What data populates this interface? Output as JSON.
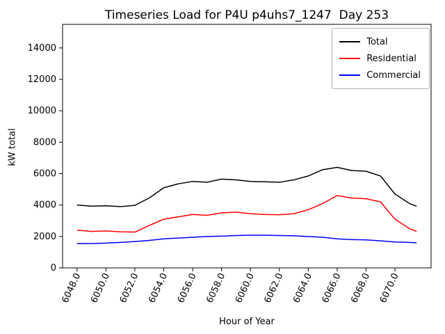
{
  "chart_data": {
    "type": "line",
    "title": "Timeseries Load for P4U p4uhs7_1247  Day 253",
    "xlabel": "Hour of Year",
    "ylabel": "kW total",
    "xlim": [
      6047,
      6072.5
    ],
    "ylim": [
      0,
      15500
    ],
    "xticks": [
      6048,
      6050,
      6052,
      6054,
      6056,
      6058,
      6060,
      6062,
      6064,
      6066,
      6068,
      6070
    ],
    "xtick_labels": [
      "6048.0",
      "6050.0",
      "6052.0",
      "6054.0",
      "6056.0",
      "6058.0",
      "6060.0",
      "6062.0",
      "6064.0",
      "6066.0",
      "6068.0",
      "6070.0"
    ],
    "yticks": [
      0,
      2000,
      4000,
      6000,
      8000,
      10000,
      12000,
      14000
    ],
    "grid": false,
    "legend_position": "upper right",
    "x": [
      6048,
      6049,
      6050,
      6051,
      6052,
      6053,
      6054,
      6055,
      6056,
      6057,
      6058,
      6059,
      6060,
      6061,
      6062,
      6063,
      6064,
      6065,
      6066,
      6067,
      6068,
      6069,
      6070,
      6071,
      6071.5
    ],
    "series": [
      {
        "name": "Total",
        "color": "#000000",
        "values": [
          4000,
          3930,
          3950,
          3900,
          3980,
          4450,
          5100,
          5350,
          5500,
          5450,
          5650,
          5600,
          5500,
          5480,
          5450,
          5600,
          5850,
          6250,
          6400,
          6200,
          6150,
          5850,
          4700,
          4100,
          3920
        ]
      },
      {
        "name": "Residential",
        "color": "#ff0000",
        "values": [
          2400,
          2320,
          2350,
          2300,
          2280,
          2700,
          3100,
          3250,
          3400,
          3350,
          3500,
          3550,
          3450,
          3400,
          3380,
          3450,
          3700,
          4100,
          4600,
          4450,
          4400,
          4200,
          3100,
          2500,
          2320
        ]
      },
      {
        "name": "Commercial",
        "color": "#0000ff",
        "values": [
          1550,
          1550,
          1580,
          1620,
          1680,
          1750,
          1850,
          1900,
          1950,
          2000,
          2020,
          2060,
          2080,
          2080,
          2060,
          2040,
          2000,
          1950,
          1850,
          1800,
          1780,
          1720,
          1650,
          1620,
          1600
        ]
      }
    ]
  }
}
